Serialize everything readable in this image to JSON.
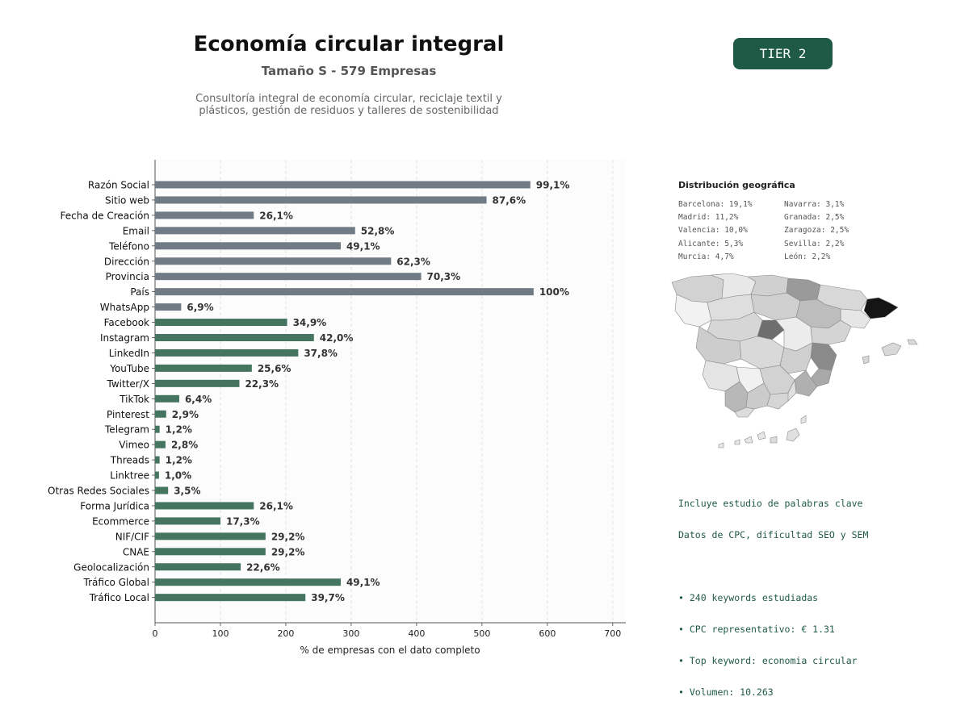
{
  "header": {
    "title": "Economía circular integral",
    "subtitle": "Tamaño S - 579 Empresas",
    "description_line1": "Consultoría integral de economía circular, reciclaje textil y",
    "description_line2": "plásticos, gestión de residuos y talleres de sostenibilidad",
    "tier_label": "TIER 2"
  },
  "colors": {
    "basic": "#717b85",
    "extended": "#457560",
    "accent": "#1e5a45"
  },
  "chart_data": {
    "type": "bar",
    "orientation": "horizontal",
    "xlabel": "% de empresas con el dato completo",
    "ylabel": "",
    "xlim": [
      0,
      720
    ],
    "xticks": [
      0,
      100,
      200,
      300,
      400,
      500,
      600,
      700
    ],
    "grid": "vertical dashed",
    "categories": [
      "Razón Social",
      "Sitio web",
      "Fecha de Creación",
      "Email",
      "Teléfono",
      "Dirección",
      "Provincia",
      "País",
      "WhatsApp",
      "Facebook",
      "Instagram",
      "LinkedIn",
      "YouTube",
      "Twitter/X",
      "TikTok",
      "Pinterest",
      "Telegram",
      "Vimeo",
      "Threads",
      "Linktree",
      "Otras Redes Sociales",
      "Forma Jurídica",
      "Ecommerce",
      "NIF/CIF",
      "CNAE",
      "Geolocalización",
      "Tráfico Global",
      "Tráfico Local"
    ],
    "values": [
      574,
      507,
      151,
      306,
      284,
      361,
      407,
      579,
      40,
      202,
      243,
      219,
      148,
      129,
      37,
      17,
      7,
      16,
      7,
      6,
      20,
      151,
      100,
      169,
      169,
      131,
      284,
      230
    ],
    "labels": [
      "99,1%",
      "87,6%",
      "26,1%",
      "52,8%",
      "49,1%",
      "62,3%",
      "70,3%",
      "100%",
      "6,9%",
      "34,9%",
      "42,0%",
      "37,8%",
      "25,6%",
      "22,3%",
      "6,4%",
      "2,9%",
      "1,2%",
      "2,8%",
      "1,2%",
      "1,0%",
      "3,5%",
      "26,1%",
      "17,3%",
      "29,2%",
      "29,2%",
      "22,6%",
      "49,1%",
      "39,7%"
    ],
    "groups": [
      "basic",
      "basic",
      "basic",
      "basic",
      "basic",
      "basic",
      "basic",
      "basic",
      "basic",
      "extended",
      "extended",
      "extended",
      "extended",
      "extended",
      "extended",
      "extended",
      "extended",
      "extended",
      "extended",
      "extended",
      "extended",
      "extended",
      "extended",
      "extended",
      "extended",
      "extended",
      "extended",
      "extended"
    ]
  },
  "geo": {
    "title": "Distribución geográfica",
    "col1": [
      "Barcelona: 19,1%",
      "Madrid: 11,2%",
      "Valencia: 10,0%",
      "Alicante: 5,3%",
      "Murcia: 4,7%"
    ],
    "col2": [
      "Navarra: 3,1%",
      "Granada: 2,5%",
      "Zaragoza: 2,5%",
      "Sevilla: 2,2%",
      "León: 2,2%"
    ]
  },
  "keywords": {
    "line1": "Incluye estudio de palabras clave",
    "line2": "Datos de CPC, dificultad SEO y SEM",
    "bullets": [
      "• 240 keywords estudiadas",
      "• CPC representativo: € 1.31",
      "• Top keyword: economia circular",
      "• Volumen: 10.263"
    ]
  }
}
